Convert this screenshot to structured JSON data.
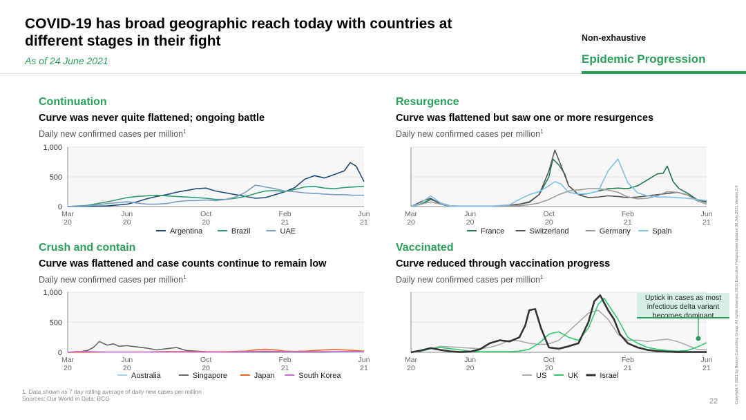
{
  "header": {
    "title": "COVID-19 has broad geographic reach today with countries at different stages in their fight",
    "date_note": "As of 24 June 2021",
    "tag": "Non-exhaustive",
    "tag_sub": "Epidemic Progression"
  },
  "colors": {
    "accent": "#29a05a",
    "argentina": "#1f4e79",
    "brazil": "#2e9b6e",
    "uae": "#7b9fc4",
    "france": "#1f7a4d",
    "switzerland": "#555555",
    "germany": "#999999",
    "spain": "#7fbfe8",
    "australia": "#9fd2ef",
    "singapore": "#666666",
    "japan": "#f26522",
    "south_korea": "#c86cd8",
    "us": "#aaaaaa",
    "uk": "#2ecc71",
    "israel": "#333333"
  },
  "callout": {
    "text": "Uptick in cases as most infectious delta variant becomes dominant"
  },
  "footer": {
    "footnote": "1. Data shown as 7 day rolling average of daily new cases per million",
    "sources": "Sources: Our World in Data; BCG",
    "page_number": "22",
    "copyright": "Copyright © 2021 by Boston Consulting Group. All rights reserved. BCG Executive Perspectives updated 06 July 2021 Version 2.0"
  },
  "chart_data": [
    {
      "id": "continuation",
      "type": "line",
      "panel_title": "Continuation",
      "subtitle": "Curve was never quite flattened; ongoing battle",
      "unit_label": "Daily new confirmed cases per million",
      "unit_sup": "1",
      "ylim": [
        0,
        1000
      ],
      "yticks": [
        "1,000",
        "500",
        "0"
      ],
      "ytick_values": [
        1000,
        500,
        0
      ],
      "xticks": [
        [
          "Mar",
          "20"
        ],
        [
          "Jun",
          "20"
        ],
        [
          "Oct",
          "20"
        ],
        [
          "Feb",
          "21"
        ],
        [
          "Jun",
          "21"
        ]
      ],
      "xtick_values": [
        0,
        3,
        7,
        11,
        15
      ],
      "xlim": [
        0,
        15
      ],
      "series": [
        {
          "name": "Argentina",
          "color": "#1f4e79",
          "x": [
            0,
            1,
            2,
            3,
            3.5,
            4,
            4.5,
            5,
            5.5,
            6,
            6.5,
            7,
            7.5,
            8,
            8.5,
            9,
            9.5,
            10,
            10.5,
            11,
            11.5,
            12,
            12.5,
            13,
            13.5,
            14,
            14.3,
            14.6,
            15
          ],
          "values": [
            0,
            2,
            10,
            40,
            80,
            130,
            170,
            200,
            240,
            270,
            300,
            310,
            260,
            230,
            200,
            170,
            140,
            150,
            200,
            250,
            320,
            460,
            520,
            480,
            540,
            600,
            740,
            680,
            420
          ]
        },
        {
          "name": "Brazil",
          "color": "#2e9b6e",
          "x": [
            0,
            1,
            2,
            3,
            3.5,
            4,
            4.5,
            5,
            5.5,
            6,
            6.5,
            7,
            7.5,
            8,
            8.5,
            9,
            9.5,
            10,
            10.5,
            11,
            11.5,
            12,
            12.5,
            13,
            13.5,
            14,
            14.5,
            15
          ],
          "values": [
            0,
            20,
            80,
            150,
            170,
            180,
            190,
            180,
            170,
            160,
            150,
            140,
            120,
            120,
            140,
            170,
            220,
            260,
            270,
            250,
            290,
            330,
            340,
            310,
            300,
            320,
            330,
            340
          ]
        },
        {
          "name": "UAE",
          "color": "#7b9fc4",
          "x": [
            0,
            1,
            2,
            3,
            3.5,
            4,
            4.5,
            5,
            5.5,
            6,
            6.5,
            7,
            7.5,
            8,
            8.5,
            9,
            9.5,
            10,
            10.5,
            11,
            11.5,
            12,
            12.5,
            13,
            13.5,
            14,
            14.5,
            15
          ],
          "values": [
            0,
            10,
            50,
            80,
            60,
            40,
            40,
            50,
            80,
            100,
            100,
            110,
            100,
            120,
            160,
            240,
            360,
            330,
            300,
            260,
            250,
            230,
            220,
            210,
            200,
            200,
            190,
            190
          ]
        }
      ]
    },
    {
      "id": "resurgence",
      "type": "line",
      "panel_title": "Resurgence",
      "subtitle": "Curve was flattened but saw one or more resurgences",
      "unit_label": "Daily new confirmed cases per million",
      "unit_sup": "1",
      "ylim": [
        0,
        1000
      ],
      "yticks": [],
      "xticks": [
        [
          "Mar",
          "20"
        ],
        [
          "Jun",
          "20"
        ],
        [
          "Oct",
          "20"
        ],
        [
          "Feb",
          "21"
        ],
        [
          "Jun",
          "21"
        ]
      ],
      "xtick_values": [
        0,
        3,
        7,
        11,
        15
      ],
      "xlim": [
        0,
        15
      ],
      "series": [
        {
          "name": "France",
          "color": "#1f7a4d",
          "x": [
            0,
            0.5,
            1,
            1.5,
            2,
            3,
            4,
            5,
            5.5,
            6,
            6.5,
            7,
            7.2,
            7.5,
            7.8,
            8,
            8.5,
            9,
            9.5,
            10,
            10.5,
            11,
            11.5,
            12,
            12.5,
            12.8,
            13,
            13.3,
            13.6,
            14,
            14.5,
            15
          ],
          "values": [
            0,
            40,
            120,
            60,
            10,
            5,
            5,
            20,
            40,
            80,
            200,
            500,
            800,
            700,
            550,
            350,
            200,
            220,
            260,
            300,
            310,
            300,
            350,
            450,
            550,
            560,
            680,
            420,
            300,
            230,
            120,
            70
          ]
        },
        {
          "name": "Switzerland",
          "color": "#555555",
          "x": [
            0,
            0.5,
            1,
            1.5,
            2,
            3,
            4,
            5,
            5.5,
            6,
            6.5,
            7,
            7.3,
            7.6,
            8,
            8.5,
            9,
            9.5,
            10,
            10.5,
            11,
            11.5,
            12,
            12.5,
            13,
            13.5,
            14,
            14.5,
            15
          ],
          "values": [
            0,
            80,
            140,
            40,
            5,
            5,
            5,
            20,
            40,
            70,
            200,
            600,
            950,
            700,
            350,
            200,
            150,
            160,
            180,
            170,
            150,
            160,
            180,
            200,
            220,
            240,
            200,
            120,
            80
          ]
        },
        {
          "name": "Germany",
          "color": "#999999",
          "x": [
            0,
            0.5,
            1,
            1.5,
            2,
            3,
            4,
            5,
            5.5,
            6,
            6.5,
            7,
            7.5,
            8,
            8.5,
            9,
            9.5,
            10,
            10.5,
            11,
            11.5,
            12,
            12.5,
            13,
            13.5,
            14,
            14.5,
            15
          ],
          "values": [
            0,
            40,
            80,
            40,
            10,
            5,
            5,
            10,
            15,
            30,
            60,
            120,
            200,
            260,
            280,
            300,
            300,
            280,
            240,
            160,
            130,
            140,
            180,
            250,
            240,
            200,
            100,
            40
          ]
        },
        {
          "name": "Spain",
          "color": "#7fbfe8",
          "x": [
            0,
            0.5,
            1,
            1.5,
            2,
            3,
            4,
            5,
            5.5,
            6,
            6.5,
            7,
            7.3,
            7.6,
            8,
            8.5,
            9,
            9.5,
            10,
            10.5,
            11,
            11.5,
            12,
            12.5,
            13,
            13.5,
            14,
            14.5,
            15
          ],
          "values": [
            0,
            60,
            180,
            60,
            5,
            5,
            5,
            30,
            120,
            200,
            250,
            350,
            420,
            380,
            240,
            210,
            220,
            260,
            600,
            800,
            400,
            230,
            180,
            160,
            160,
            150,
            140,
            120,
            100
          ]
        }
      ]
    },
    {
      "id": "crush",
      "type": "line",
      "panel_title": "Crush and contain",
      "subtitle": "Curve was flattened and case counts continue to remain low",
      "unit_label": "Daily new confirmed cases per million",
      "unit_sup": "1",
      "ylim": [
        0,
        1000
      ],
      "yticks": [
        "1,000",
        "500",
        "0"
      ],
      "ytick_values": [
        1000,
        500,
        0
      ],
      "xticks": [
        [
          "Mar",
          "20"
        ],
        [
          "Jun",
          "20"
        ],
        [
          "Oct",
          "20"
        ],
        [
          "Feb",
          "21"
        ],
        [
          "Jun",
          "21"
        ]
      ],
      "xtick_values": [
        0,
        3,
        7,
        11,
        15
      ],
      "xlim": [
        0,
        15
      ],
      "series": [
        {
          "name": "Australia",
          "color": "#9fd2ef",
          "x": [
            0,
            0.5,
            1,
            2,
            3,
            4,
            5,
            6,
            7,
            8,
            9,
            10,
            11,
            12,
            13,
            14,
            15
          ],
          "values": [
            0,
            10,
            15,
            2,
            2,
            5,
            15,
            12,
            3,
            2,
            2,
            2,
            2,
            2,
            2,
            2,
            2
          ]
        },
        {
          "name": "Singapore",
          "color": "#666666",
          "x": [
            0,
            0.5,
            1,
            1.3,
            1.6,
            2,
            2.3,
            2.6,
            3,
            3.5,
            4,
            4.5,
            5,
            5.5,
            6,
            7,
            8,
            9,
            10,
            11,
            12,
            13,
            14,
            15
          ],
          "values": [
            0,
            5,
            30,
            80,
            180,
            120,
            140,
            100,
            110,
            90,
            70,
            40,
            60,
            80,
            30,
            10,
            5,
            5,
            5,
            5,
            5,
            5,
            10,
            10
          ]
        },
        {
          "name": "Japan",
          "color": "#f26522",
          "x": [
            0,
            1,
            2,
            3,
            4,
            5,
            6,
            7,
            8,
            9,
            9.5,
            10,
            10.5,
            11,
            11.5,
            12,
            12.5,
            13,
            13.5,
            14,
            14.5,
            15
          ],
          "values": [
            0,
            2,
            3,
            3,
            3,
            10,
            10,
            8,
            10,
            20,
            40,
            50,
            40,
            20,
            15,
            20,
            30,
            40,
            45,
            40,
            30,
            20
          ]
        },
        {
          "name": "South Korea",
          "color": "#c86cd8",
          "x": [
            0,
            0.5,
            1,
            2,
            3,
            4,
            5,
            6,
            7,
            8,
            9,
            10,
            11,
            12,
            13,
            14,
            15
          ],
          "values": [
            0,
            15,
            10,
            3,
            3,
            3,
            3,
            5,
            3,
            5,
            10,
            20,
            10,
            10,
            10,
            12,
            10
          ]
        }
      ]
    },
    {
      "id": "vaccinated",
      "type": "line",
      "panel_title": "Vaccinated",
      "subtitle": "Curve reduced through vaccination progress",
      "unit_label": "Daily new confirmed cases per million",
      "unit_sup": "1",
      "ylim": [
        0,
        1000
      ],
      "yticks": [],
      "xticks": [
        [
          "Mar",
          "20"
        ],
        [
          "Jun",
          "20"
        ],
        [
          "Oct",
          "20"
        ],
        [
          "Feb",
          "21"
        ],
        [
          "Jun",
          "21"
        ]
      ],
      "xtick_values": [
        0,
        3,
        7,
        11,
        15
      ],
      "xlim": [
        0,
        15
      ],
      "series": [
        {
          "name": "US",
          "color": "#aaaaaa",
          "x": [
            0,
            0.5,
            1,
            1.5,
            2,
            2.5,
            3,
            3.5,
            4,
            4.5,
            5,
            5.5,
            6,
            6.5,
            7,
            7.5,
            8,
            8.5,
            9,
            9.5,
            10,
            10.5,
            11,
            11.5,
            12,
            12.5,
            13,
            13.5,
            14,
            14.5,
            15
          ],
          "values": [
            0,
            20,
            60,
            100,
            90,
            80,
            70,
            60,
            80,
            130,
            200,
            190,
            150,
            130,
            140,
            200,
            350,
            500,
            650,
            700,
            550,
            300,
            200,
            200,
            180,
            200,
            220,
            180,
            120,
            50,
            40
          ]
        },
        {
          "name": "UK",
          "color": "#2ecc71",
          "x": [
            0,
            0.5,
            1,
            1.5,
            2,
            2.5,
            3,
            3.5,
            4,
            4.5,
            5,
            5.5,
            6,
            6.5,
            7,
            7.2,
            7.5,
            8,
            8.5,
            9,
            9.5,
            9.8,
            10,
            10.5,
            11,
            11.5,
            12,
            12.5,
            13,
            13.5,
            14,
            14.3,
            14.6,
            15
          ],
          "values": [
            0,
            20,
            60,
            80,
            60,
            40,
            20,
            10,
            10,
            10,
            10,
            20,
            50,
            150,
            300,
            320,
            340,
            250,
            200,
            400,
            800,
            900,
            800,
            550,
            250,
            150,
            80,
            50,
            30,
            20,
            30,
            60,
            100,
            160
          ]
        },
        {
          "name": "Israel",
          "color": "#333333",
          "x": [
            0,
            0.5,
            1,
            1.5,
            2,
            2.5,
            3,
            3.5,
            4,
            4.5,
            5,
            5.5,
            5.8,
            6,
            6.3,
            6.6,
            7,
            7.5,
            8,
            8.5,
            9,
            9.3,
            9.6,
            10,
            10.3,
            10.6,
            11,
            11.5,
            12,
            12.5,
            13,
            13.5,
            14,
            14.5,
            15
          ],
          "values": [
            0,
            30,
            70,
            40,
            15,
            5,
            10,
            50,
            150,
            200,
            180,
            250,
            450,
            700,
            720,
            400,
            80,
            60,
            100,
            150,
            500,
            850,
            950,
            700,
            550,
            300,
            150,
            80,
            40,
            20,
            10,
            5,
            5,
            5,
            5
          ]
        }
      ]
    }
  ]
}
